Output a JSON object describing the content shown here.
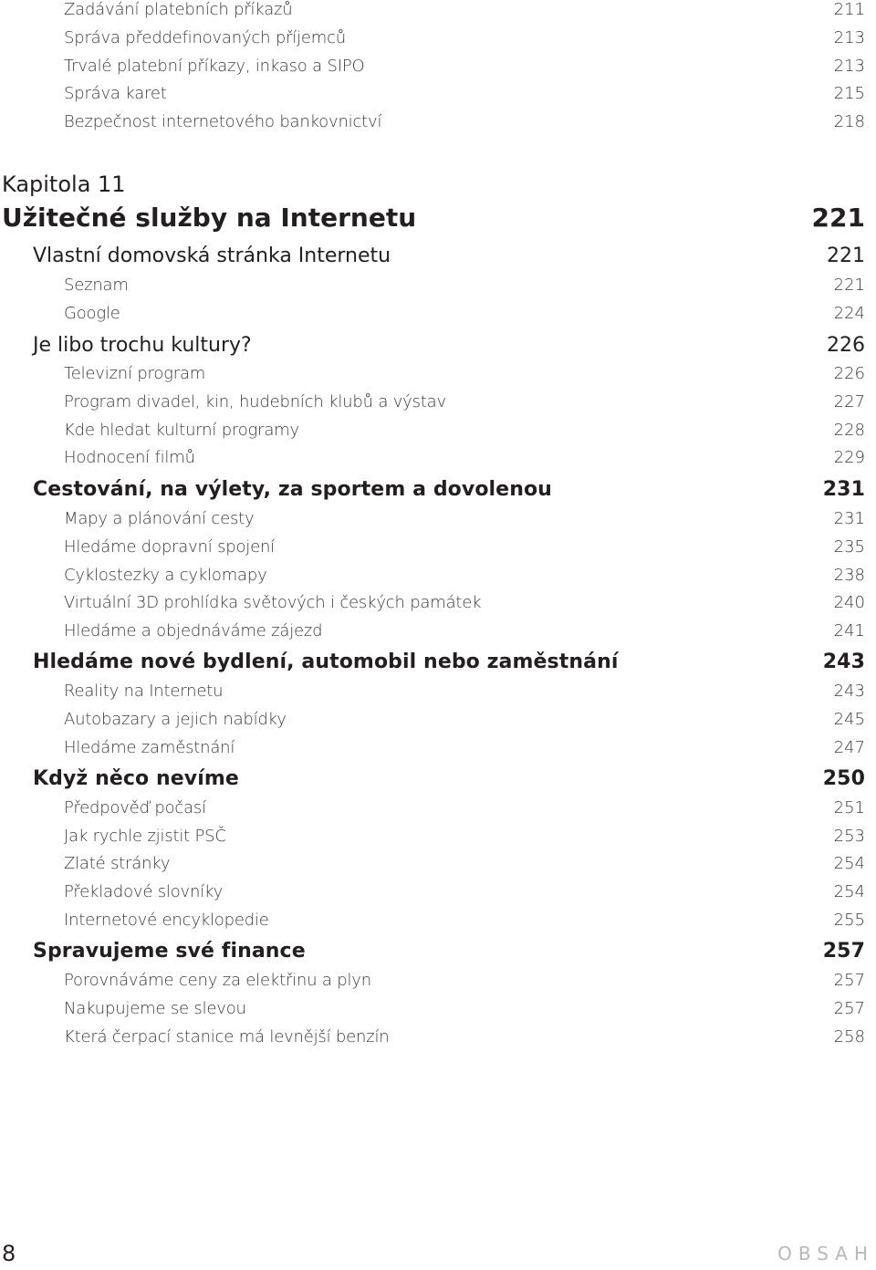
{
  "top_items": [
    {
      "title": "Zadávání platebních příkazů",
      "page": "211"
    },
    {
      "title": "Správa předdefinovaných příjemců",
      "page": "213"
    },
    {
      "title": "Trvalé platební příkazy, inkaso a SIPO",
      "page": "213"
    },
    {
      "title": "Správa karet",
      "page": "215"
    },
    {
      "title": "Bezpečnost internetového bankovnictví",
      "page": "218"
    }
  ],
  "chapter": {
    "label": "Kapitola 11",
    "title": "Užitečné služby na Internetu",
    "page": "221"
  },
  "sections": [
    {
      "title": "Vlastní domovská stránka Internetu",
      "page": "221",
      "items": [
        {
          "title": "Seznam",
          "page": "221"
        },
        {
          "title": "Google",
          "page": "224"
        }
      ]
    },
    {
      "title": "Je libo trochu kultury?",
      "page": "226",
      "items": [
        {
          "title": "Televizní program",
          "page": "226"
        },
        {
          "title": "Program divadel, kin, hudebních klubů a výstav",
          "page": "227"
        },
        {
          "title": "Kde hledat kulturní programy",
          "page": "228"
        },
        {
          "title": "Hodnocení filmů",
          "page": "229"
        }
      ]
    },
    {
      "title": "Cestování, na výlety, za sportem a dovolenou",
      "page": "231",
      "items": [
        {
          "title": "Mapy a plánování cesty",
          "page": "231"
        },
        {
          "title": "Hledáme dopravní spojení",
          "page": "235"
        },
        {
          "title": "Cyklostezky a cyklomapy",
          "page": "238"
        },
        {
          "title": "Virtuální 3D prohlídka světových i českých památek",
          "page": "240"
        },
        {
          "title": "Hledáme a objednáváme zájezd",
          "page": "241"
        }
      ]
    },
    {
      "title": "Hledáme nové bydlení, automobil nebo zaměstnání",
      "page": "243",
      "items": [
        {
          "title": "Reality na Internetu",
          "page": "243"
        },
        {
          "title": "Autobazary a jejich nabídky",
          "page": "245"
        },
        {
          "title": "Hledáme zaměstnání",
          "page": "247"
        }
      ]
    },
    {
      "title": "Když něco nevíme",
      "page": "250",
      "items": [
        {
          "title": "Předpověď počasí",
          "page": "251"
        },
        {
          "title": "Jak rychle zjistit PSČ",
          "page": "253"
        },
        {
          "title": "Zlaté stránky",
          "page": "254"
        },
        {
          "title": "Překladové slovníky",
          "page": "254"
        },
        {
          "title": "Internetové encyklopedie",
          "page": "255"
        }
      ]
    },
    {
      "title": "Spravujeme své finance",
      "page": "257",
      "items": [
        {
          "title": "Porovnáváme ceny za elektřinu a plyn",
          "page": "257"
        },
        {
          "title": "Nakupujeme se slevou",
          "page": "257"
        },
        {
          "title": "Která čerpací stanice má levnější benzín",
          "page": "258"
        }
      ]
    }
  ],
  "footer": {
    "page_number": "8",
    "label": "OBSAH"
  }
}
